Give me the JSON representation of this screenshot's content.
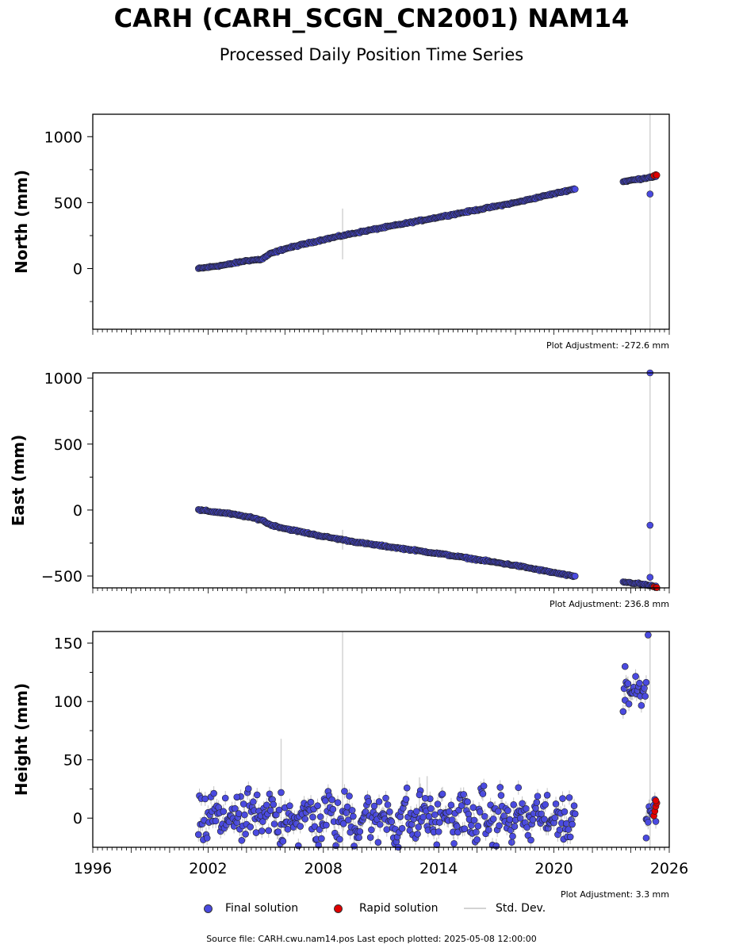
{
  "title": "CARH (CARH_SCGN_CN2001) NAM14",
  "subtitle": "Processed Daily Position Time Series",
  "legend": {
    "final_label": "Final solution",
    "rapid_label": "Rapid solution",
    "stddev_label": "Std. Dev."
  },
  "footer": "Source file: CARH.cwu.nam14.pos  Last epoch plotted: 2025-05-08 12:00:00",
  "colors": {
    "final": "#4a4ae0",
    "rapid": "#e00000",
    "stddev": "#d3d3d3",
    "edge": "#222222"
  },
  "chart_data": [
    {
      "type": "scatter",
      "ylabel": "North (mm)",
      "ylim": [
        -460,
        1170
      ],
      "yticks": [
        0,
        500,
        1000
      ],
      "xlim": [
        1996,
        2026
      ],
      "adjustment": "Plot Adjustment: -272.6 mm",
      "series": [
        {
          "name": "Final solution",
          "segments": [
            {
              "x": [
                2001.5,
                2003.0,
                2004.0,
                2004.8,
                2005.2,
                2006.0,
                2008.0,
                2010.0,
                2014.0,
                2018.0,
                2021.1
              ],
              "y": [
                0,
                30,
                60,
                70,
                110,
                150,
                220,
                280,
                390,
                500,
                605
              ]
            },
            {
              "x": [
                2023.6,
                2024.5,
                2025.3
              ],
              "y": [
                660,
                680,
                700
              ]
            }
          ],
          "outliers": [
            {
              "x": 2025.0,
              "y": 565
            }
          ]
        },
        {
          "name": "Rapid solution",
          "x": [
            2025.2,
            2025.3,
            2025.35
          ],
          "y": [
            705,
            712,
            708
          ]
        }
      ],
      "stddev_spikes": [
        {
          "x": 2009.0,
          "low": 70,
          "high": 455
        },
        {
          "x": 2025.0,
          "low": -460,
          "high": 1170
        }
      ]
    },
    {
      "type": "scatter",
      "ylabel": "East (mm)",
      "ylim": [
        -590,
        1040
      ],
      "yticks": [
        -500,
        0,
        500,
        1000
      ],
      "xlim": [
        1996,
        2026
      ],
      "adjustment": "Plot Adjustment: 236.8 mm",
      "series": [
        {
          "name": "Final solution",
          "segments": [
            {
              "x": [
                2001.5,
                2003.0,
                2004.0,
                2004.8,
                2005.2,
                2006.0,
                2008.0,
                2010.0,
                2014.0,
                2018.0,
                2021.1
              ],
              "y": [
                0,
                -25,
                -50,
                -75,
                -110,
                -140,
                -200,
                -250,
                -330,
                -420,
                -505
              ]
            },
            {
              "x": [
                2023.6,
                2024.5,
                2025.3
              ],
              "y": [
                -545,
                -560,
                -580
              ]
            }
          ],
          "outliers": [
            {
              "x": 2025.0,
              "y": 1040
            },
            {
              "x": 2025.0,
              "y": -115
            },
            {
              "x": 2025.0,
              "y": -510
            }
          ]
        },
        {
          "name": "Rapid solution",
          "x": [
            2025.2,
            2025.3,
            2025.35
          ],
          "y": [
            -583,
            -586,
            -588
          ]
        }
      ],
      "stddev_spikes": [
        {
          "x": 2009.0,
          "low": -300,
          "high": -150
        },
        {
          "x": 2025.0,
          "low": -590,
          "high": 1040
        }
      ]
    },
    {
      "type": "scatter",
      "ylabel": "Height (mm)",
      "ylim": [
        -25,
        160
      ],
      "yticks": [
        0,
        50,
        100,
        150
      ],
      "xlim": [
        1996,
        2026
      ],
      "xticks": [
        1996,
        2002,
        2008,
        2014,
        2020,
        2026
      ],
      "adjustment": "Plot Adjustment: 3.3 mm",
      "series": [
        {
          "name": "Final solution",
          "segments": [
            {
              "x": [
                2001.5,
                2021.1
              ],
              "y": [
                0,
                0
              ],
              "noise": 10,
              "seasonal": 7
            },
            {
              "x": [
                2023.6,
                2024.8
              ],
              "y": [
                110,
                110
              ],
              "noise": 8,
              "seasonal": 0
            },
            {
              "x": [
                2024.8,
                2025.3
              ],
              "y": [
                8,
                8
              ],
              "noise": 6,
              "seasonal": 0
            }
          ],
          "outliers": [
            {
              "x": 2005.8,
              "y": 22
            },
            {
              "x": 2003.5,
              "y": 18
            },
            {
              "x": 2013.0,
              "y": 20
            },
            {
              "x": 2013.3,
              "y": 17
            },
            {
              "x": 2011.9,
              "y": -25
            },
            {
              "x": 2024.9,
              "y": 157
            },
            {
              "x": 2024.8,
              "y": -17
            },
            {
              "x": 2023.7,
              "y": 130
            }
          ]
        },
        {
          "name": "Rapid solution",
          "x": [
            2025.2,
            2025.25,
            2025.3,
            2025.35,
            2025.3
          ],
          "y": [
            2,
            6,
            10,
            13,
            15
          ]
        }
      ],
      "stddev_spikes": [
        {
          "x": 2009.0,
          "low": -25,
          "high": 160
        },
        {
          "x": 2005.8,
          "low": 0,
          "high": 68
        },
        {
          "x": 2025.0,
          "low": -25,
          "high": 160
        },
        {
          "x": 2013.0,
          "low": 5,
          "high": 35
        },
        {
          "x": 2013.4,
          "low": 5,
          "high": 36
        }
      ]
    }
  ]
}
